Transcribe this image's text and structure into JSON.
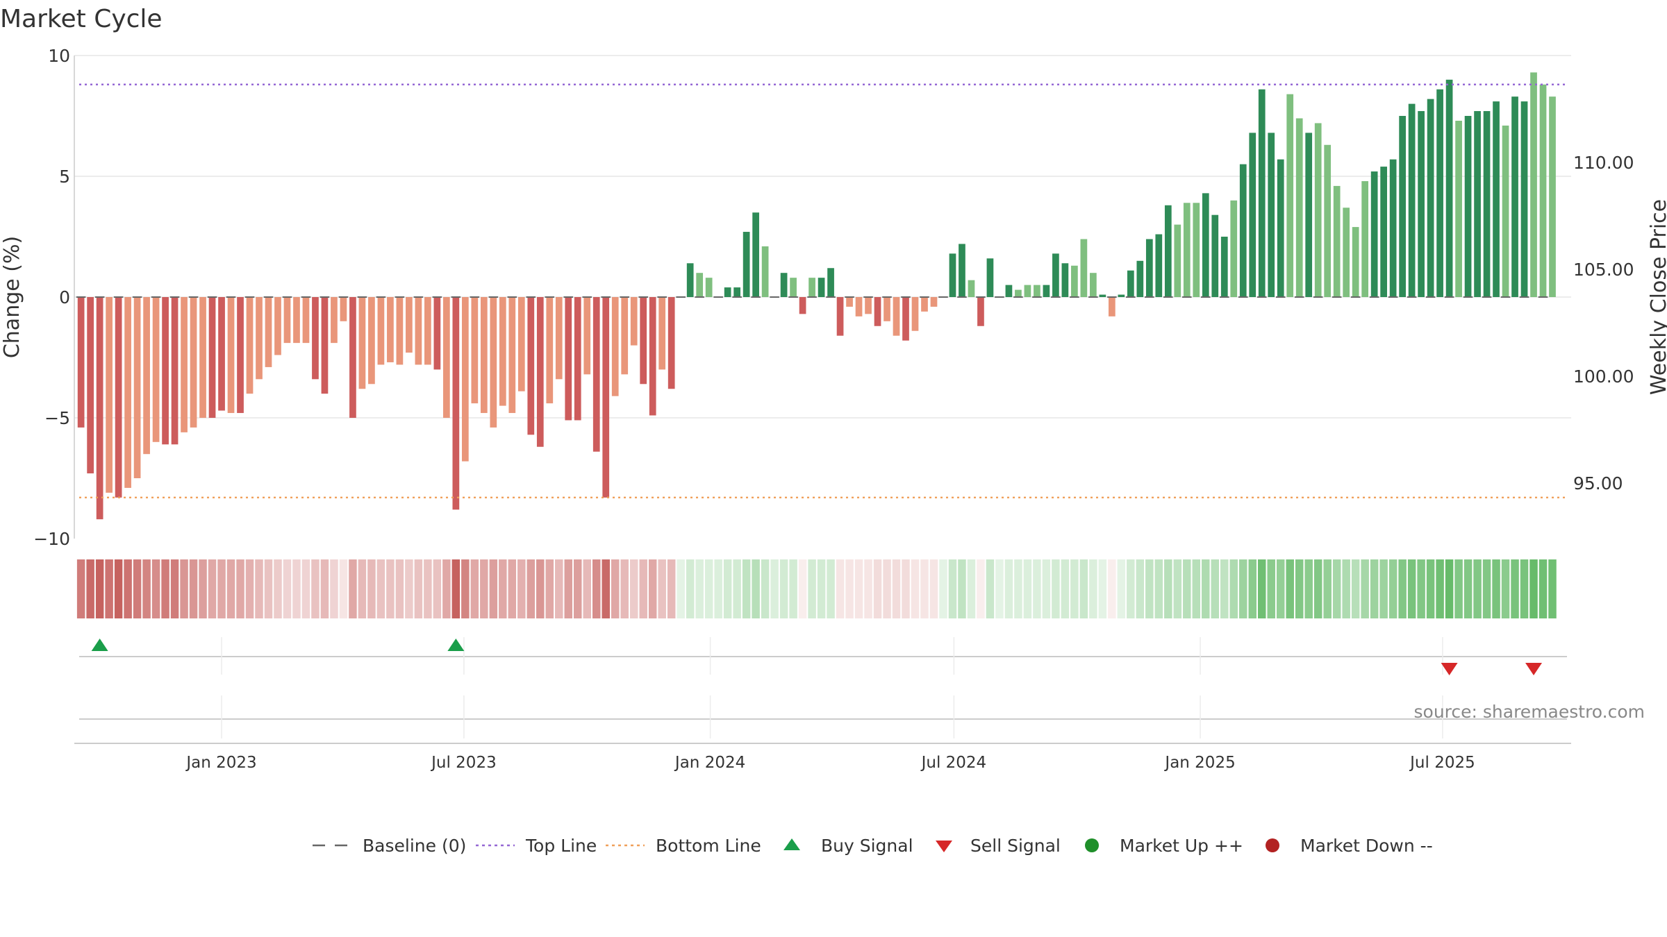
{
  "chart_data": {
    "type": "bar",
    "title": "Market Cycle",
    "ylabel_left": "Change (%)",
    "ylabel_right": "Weekly Close Price",
    "source": "source: sharemaestro.com",
    "ylim_left": [
      -10,
      10
    ],
    "yticks_left": [
      {
        "value": 10,
        "label": "10"
      },
      {
        "value": 5,
        "label": "5"
      },
      {
        "value": 0,
        "label": "0"
      },
      {
        "value": -5,
        "label": "−5"
      },
      {
        "value": -10,
        "label": "−10"
      }
    ],
    "ylim_right": [
      92.4,
      115.0
    ],
    "yticks_right": [
      {
        "value": 110,
        "label": "110.00"
      },
      {
        "value": 105,
        "label": "105.00"
      },
      {
        "value": 100,
        "label": "100.00"
      },
      {
        "value": 95,
        "label": "95.00"
      }
    ],
    "xlim": [
      "2022-09-13",
      "2025-10-05"
    ],
    "xticks": [
      {
        "date": "2023-01-01",
        "label": "Jan 2023"
      },
      {
        "date": "2023-07-01",
        "label": "Jul 2023"
      },
      {
        "date": "2024-01-01",
        "label": "Jan 2024"
      },
      {
        "date": "2024-07-01",
        "label": "Jul 2024"
      },
      {
        "date": "2025-01-01",
        "label": "Jan 2025"
      },
      {
        "date": "2025-07-01",
        "label": "Jul 2025"
      }
    ],
    "first_week": "2022-09-18",
    "top_line": 8.8,
    "bottom_line": -8.3,
    "values": [
      -5.4,
      -7.3,
      -9.2,
      -8.1,
      -8.3,
      -7.9,
      -7.5,
      -6.5,
      -6.0,
      -6.1,
      -6.1,
      -5.6,
      -5.4,
      -5.0,
      -5.0,
      -4.7,
      -4.8,
      -4.8,
      -4.0,
      -3.4,
      -2.9,
      -2.4,
      -1.9,
      -1.9,
      -1.9,
      -3.4,
      -4.0,
      -1.9,
      -1.0,
      -5.0,
      -3.8,
      -3.6,
      -2.8,
      -2.7,
      -2.8,
      -2.3,
      -2.8,
      -2.8,
      -3.0,
      -5.0,
      -8.8,
      -6.8,
      -4.4,
      -4.8,
      -5.4,
      -4.5,
      -4.8,
      -3.9,
      -5.7,
      -6.2,
      -4.4,
      -3.4,
      -5.1,
      -5.1,
      -3.2,
      -6.4,
      -8.3,
      -4.1,
      -3.2,
      -2.0,
      -3.6,
      -4.9,
      -3.0,
      -3.8,
      0.0,
      1.4,
      1.0,
      0.8,
      0.0,
      0.4,
      0.4,
      2.7,
      3.5,
      2.1,
      0.0,
      1.0,
      0.8,
      -0.7,
      0.8,
      0.8,
      1.2,
      -1.6,
      -0.4,
      -0.8,
      -0.7,
      -1.2,
      -1.0,
      -1.6,
      -1.8,
      -1.4,
      -0.6,
      -0.4,
      0.0,
      1.8,
      2.2,
      0.7,
      -1.2,
      1.6,
      0.0,
      0.5,
      0.3,
      0.5,
      0.5,
      0.5,
      1.8,
      1.4,
      1.3,
      2.4,
      1.0,
      0.1,
      -0.8,
      0.1,
      1.1,
      1.5,
      2.4,
      2.6,
      3.8,
      3.0,
      3.9,
      3.9,
      4.3,
      3.4,
      2.5,
      4.0,
      5.5,
      6.8,
      8.6,
      6.8,
      5.7,
      8.4,
      7.4,
      6.8,
      7.2,
      6.3,
      4.6,
      3.7,
      2.9,
      4.8,
      5.2,
      5.4,
      5.7,
      7.5,
      8.0,
      7.7,
      8.2,
      8.6,
      9.0,
      7.3,
      7.5,
      7.7,
      7.7,
      8.1,
      7.1,
      8.3,
      8.1,
      9.3,
      8.8,
      8.3
    ],
    "dark_weeks": [
      0,
      1,
      2,
      4,
      9,
      10,
      14,
      15,
      17,
      25,
      26,
      29,
      38,
      40,
      48,
      49,
      52,
      53,
      55,
      56,
      60,
      61,
      63,
      65,
      69,
      70,
      71,
      72,
      75,
      77,
      79,
      80,
      81,
      85,
      88,
      93,
      94,
      96,
      97,
      99,
      103,
      104,
      105,
      109,
      111,
      112,
      113,
      114,
      115,
      116,
      120,
      121,
      122,
      124,
      125,
      126,
      127,
      128,
      131,
      138,
      139,
      140,
      141,
      142,
      143,
      144,
      145,
      146,
      148,
      149,
      150,
      151,
      153,
      154
    ],
    "heat_levels": [
      0.75,
      0.85,
      0.9,
      0.8,
      0.9,
      0.8,
      0.75,
      0.7,
      0.65,
      0.75,
      0.75,
      0.6,
      0.6,
      0.55,
      0.5,
      0.5,
      0.5,
      0.5,
      0.45,
      0.4,
      0.35,
      0.3,
      0.25,
      0.25,
      0.25,
      0.35,
      0.4,
      0.25,
      0.15,
      0.5,
      0.4,
      0.4,
      0.35,
      0.35,
      0.35,
      0.3,
      0.35,
      0.35,
      0.35,
      0.5,
      0.9,
      0.7,
      0.5,
      0.5,
      0.55,
      0.5,
      0.5,
      0.45,
      0.55,
      0.6,
      0.5,
      0.4,
      0.55,
      0.55,
      0.4,
      0.65,
      0.85,
      0.5,
      0.4,
      0.3,
      0.4,
      0.5,
      0.35,
      0.4,
      0.15,
      0.25,
      0.2,
      0.2,
      0.2,
      0.25,
      0.25,
      0.35,
      0.4,
      0.3,
      0.2,
      0.25,
      0.25,
      0.1,
      0.25,
      0.25,
      0.25,
      0.15,
      0.15,
      0.15,
      0.15,
      0.2,
      0.2,
      0.2,
      0.2,
      0.15,
      0.15,
      0.15,
      0.15,
      0.3,
      0.35,
      0.2,
      0.1,
      0.3,
      0.15,
      0.2,
      0.2,
      0.2,
      0.2,
      0.2,
      0.25,
      0.25,
      0.25,
      0.3,
      0.2,
      0.15,
      0.1,
      0.15,
      0.25,
      0.3,
      0.35,
      0.35,
      0.4,
      0.35,
      0.4,
      0.4,
      0.45,
      0.4,
      0.35,
      0.45,
      0.55,
      0.65,
      0.8,
      0.65,
      0.6,
      0.75,
      0.7,
      0.65,
      0.7,
      0.6,
      0.5,
      0.45,
      0.4,
      0.5,
      0.55,
      0.55,
      0.6,
      0.7,
      0.75,
      0.7,
      0.75,
      0.8,
      0.85,
      0.7,
      0.7,
      0.7,
      0.7,
      0.75,
      0.65,
      0.75,
      0.75,
      0.85,
      0.8,
      0.8
    ],
    "buy_signals": [
      2,
      40
    ],
    "sell_signals": [
      146,
      155
    ],
    "price_series": [],
    "legend": [
      {
        "label": "Baseline (0)",
        "symbol": "dash-line",
        "color": "#666666"
      },
      {
        "label": "Top Line",
        "symbol": "dotted-line",
        "color": "#9467d4"
      },
      {
        "label": "Bottom Line",
        "symbol": "dotted-line",
        "color": "#f0a05a"
      },
      {
        "label": "Buy Signal",
        "symbol": "triangle-up",
        "color": "#1a9e4a"
      },
      {
        "label": "Sell Signal",
        "symbol": "triangle-down",
        "color": "#d62728"
      },
      {
        "label": "Market Up ++",
        "symbol": "circle",
        "color": "#1f8f2a"
      },
      {
        "label": "Market Down --",
        "symbol": "circle",
        "color": "#b22222"
      }
    ],
    "colors": {
      "pos_dark": "#2e8b57",
      "pos_light": "#7fbf7f",
      "neg_dark": "#cd5c5c",
      "neg_light": "#e9967a",
      "heat_pos": "#4caf50",
      "heat_neg": "#c0504d",
      "top_line": "#9467d4",
      "bottom_line": "#f0a05a",
      "buy": "#1a9e4a",
      "sell": "#d62728",
      "grid": "#e6e6e6",
      "baseline": "#666666"
    }
  }
}
